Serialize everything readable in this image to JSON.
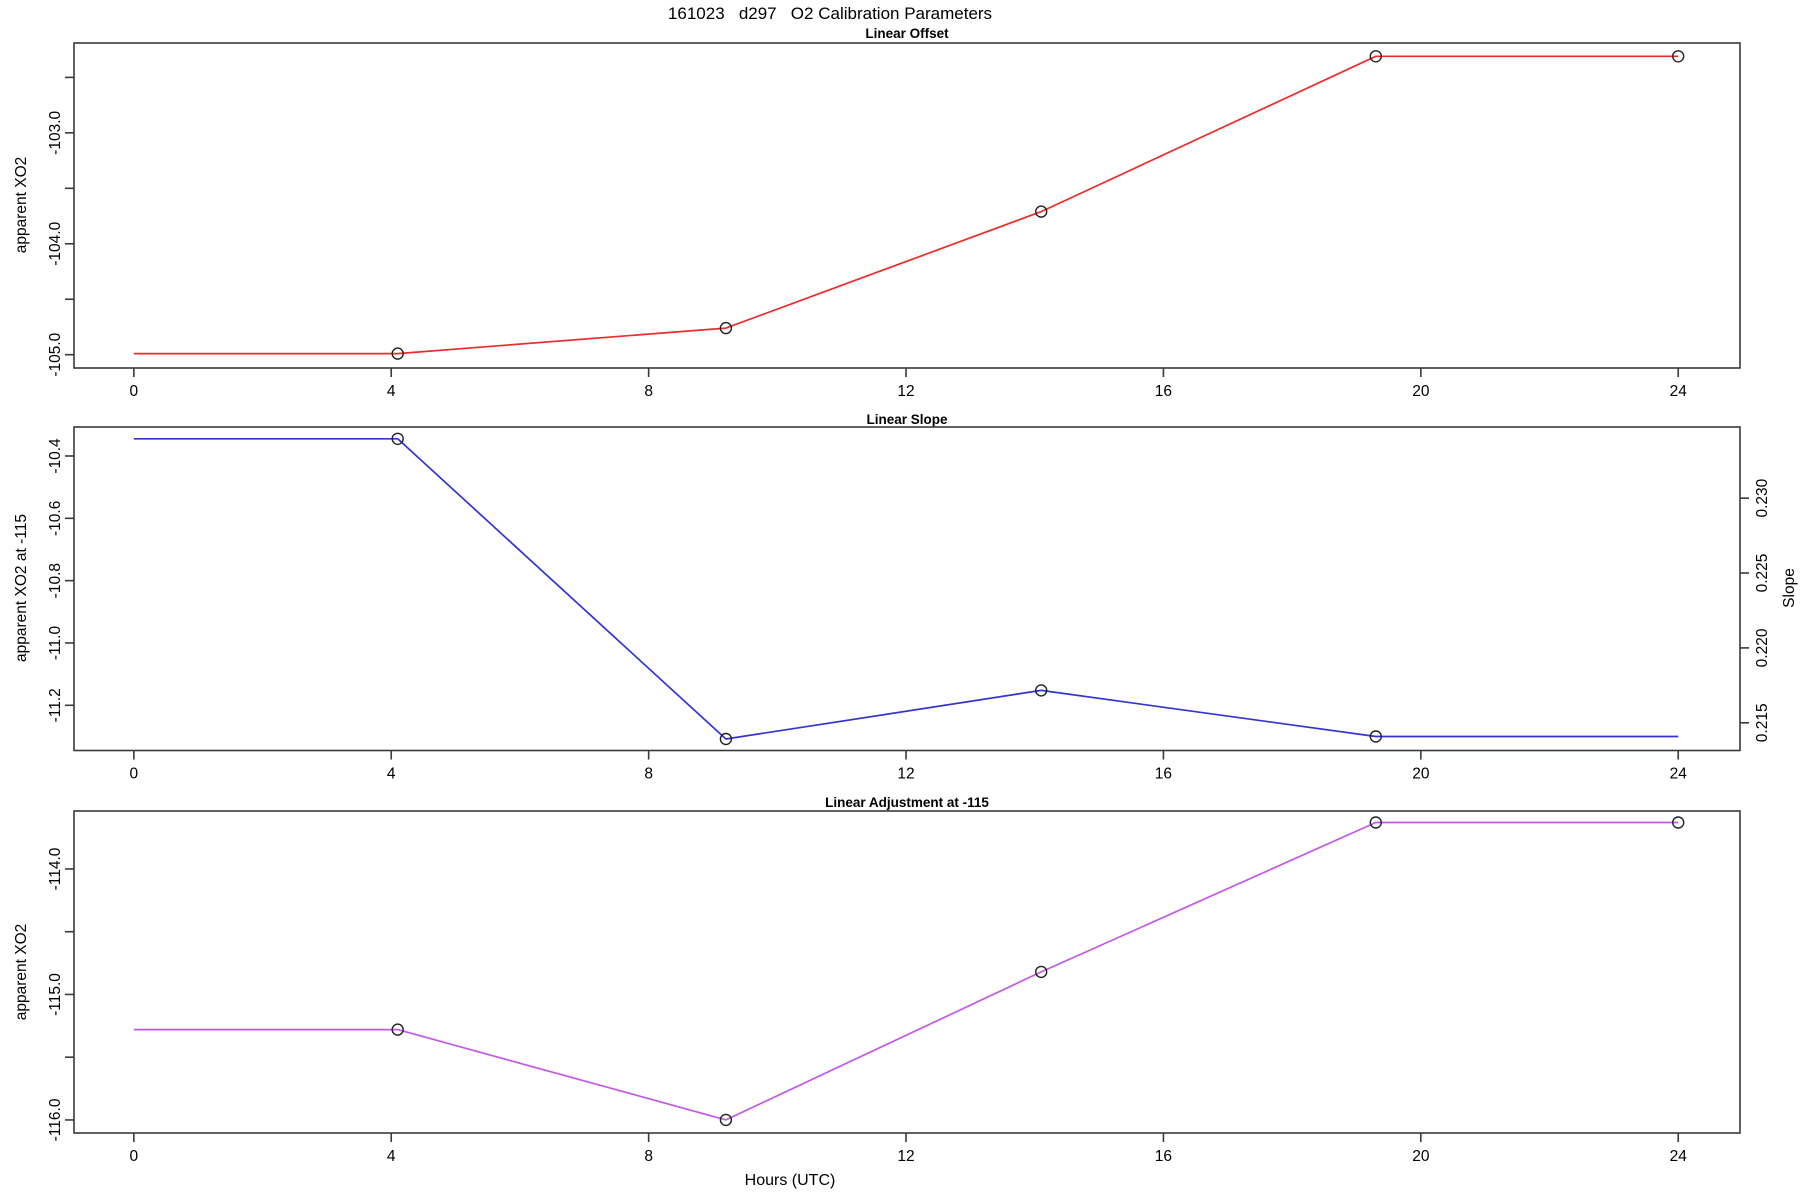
{
  "header": {
    "title": "161023   d297   O2 Calibration Parameters"
  },
  "footer": {
    "xlabel": "Hours (UTC)"
  },
  "axis_color": "#3a3a3a",
  "marker_color": "#222222",
  "chart_data": [
    {
      "type": "line",
      "title": "Linear Offset",
      "ylabel": "apparent XO2",
      "legend": "none",
      "grid": "off",
      "color": "#ee2b2b",
      "marker": "open-circle",
      "x": [
        4.1,
        9.2,
        14.1,
        19.3,
        24
      ],
      "y": [
        -104.99,
        -104.76,
        -103.71,
        -102.31,
        -102.31
      ],
      "line_x": [
        0,
        4.1,
        9.2,
        14.1,
        19.3,
        24
      ],
      "line_y": [
        -104.99,
        -104.99,
        -104.76,
        -103.71,
        -102.31,
        -102.31
      ],
      "xlim": [
        -0.93,
        24.96
      ],
      "ylim": [
        -105.12,
        -102.19
      ],
      "xticks": [
        0,
        4,
        8,
        12,
        16,
        20,
        24
      ],
      "yticks": [
        {
          "v": -103.0,
          "label": "-103.0"
        },
        {
          "v": -104.0,
          "label": "-104.0"
        },
        {
          "v": -105.0,
          "label": "-105.0"
        }
      ],
      "yticks_minor": [
        -102.5,
        -103.5,
        -104.5
      ]
    },
    {
      "type": "line",
      "title": "Linear Slope",
      "ylabel": "apparent XO2 at -115",
      "y2label": "Slope",
      "legend": "none",
      "grid": "off",
      "color": "#3333d1",
      "marker": "open-circle",
      "x": [
        4.1,
        9.2,
        14.1,
        19.3
      ],
      "y": [
        -10.345,
        -11.308,
        -11.152,
        -11.3
      ],
      "y_right_slope": [
        0.234,
        0.2139,
        0.2172,
        0.2141
      ],
      "line_x": [
        0,
        4.1,
        9.2,
        14.1,
        19.3,
        24
      ],
      "line_y": [
        -10.345,
        -10.345,
        -11.308,
        -11.152,
        -11.3,
        -11.3
      ],
      "xlim": [
        -0.93,
        24.96
      ],
      "ylim": [
        -11.345,
        -10.307
      ],
      "y2lim": [
        0.21315,
        0.23475
      ],
      "xticks": [
        0,
        4,
        8,
        12,
        16,
        20,
        24
      ],
      "yticks": [
        {
          "v": -10.4,
          "label": "-10.4"
        },
        {
          "v": -10.6,
          "label": "-10.6"
        },
        {
          "v": -10.8,
          "label": "-10.8"
        },
        {
          "v": -11.0,
          "label": "-11.0"
        },
        {
          "v": -11.2,
          "label": "-11.2"
        }
      ],
      "yticks_minor": [],
      "y2ticks": [
        {
          "v": 0.215,
          "label": "0.215"
        },
        {
          "v": 0.22,
          "label": "0.220"
        },
        {
          "v": 0.225,
          "label": "0.225"
        },
        {
          "v": 0.23,
          "label": "0.230"
        }
      ]
    },
    {
      "type": "line",
      "title": "Linear Adjustment at -115",
      "ylabel": "apparent XO2",
      "legend": "none",
      "grid": "off",
      "color": "#c258ea",
      "marker": "open-circle",
      "x": [
        4.1,
        9.2,
        14.1,
        19.3,
        24
      ],
      "y": [
        -115.28,
        -116.0,
        -114.82,
        -113.63,
        -113.63
      ],
      "line_x": [
        0,
        4.1,
        9.2,
        14.1,
        19.3,
        24
      ],
      "line_y": [
        -115.28,
        -115.28,
        -116.0,
        -114.82,
        -113.63,
        -113.63
      ],
      "xlim": [
        -0.93,
        24.96
      ],
      "ylim": [
        -116.104,
        -113.538
      ],
      "xticks": [
        0,
        4,
        8,
        12,
        16,
        20,
        24
      ],
      "yticks": [
        {
          "v": -114.0,
          "label": "-114.0"
        },
        {
          "v": -115.0,
          "label": "-115.0"
        },
        {
          "v": -116.0,
          "label": "-116.0"
        }
      ],
      "yticks_minor": [
        -114.5,
        -115.5
      ]
    }
  ]
}
